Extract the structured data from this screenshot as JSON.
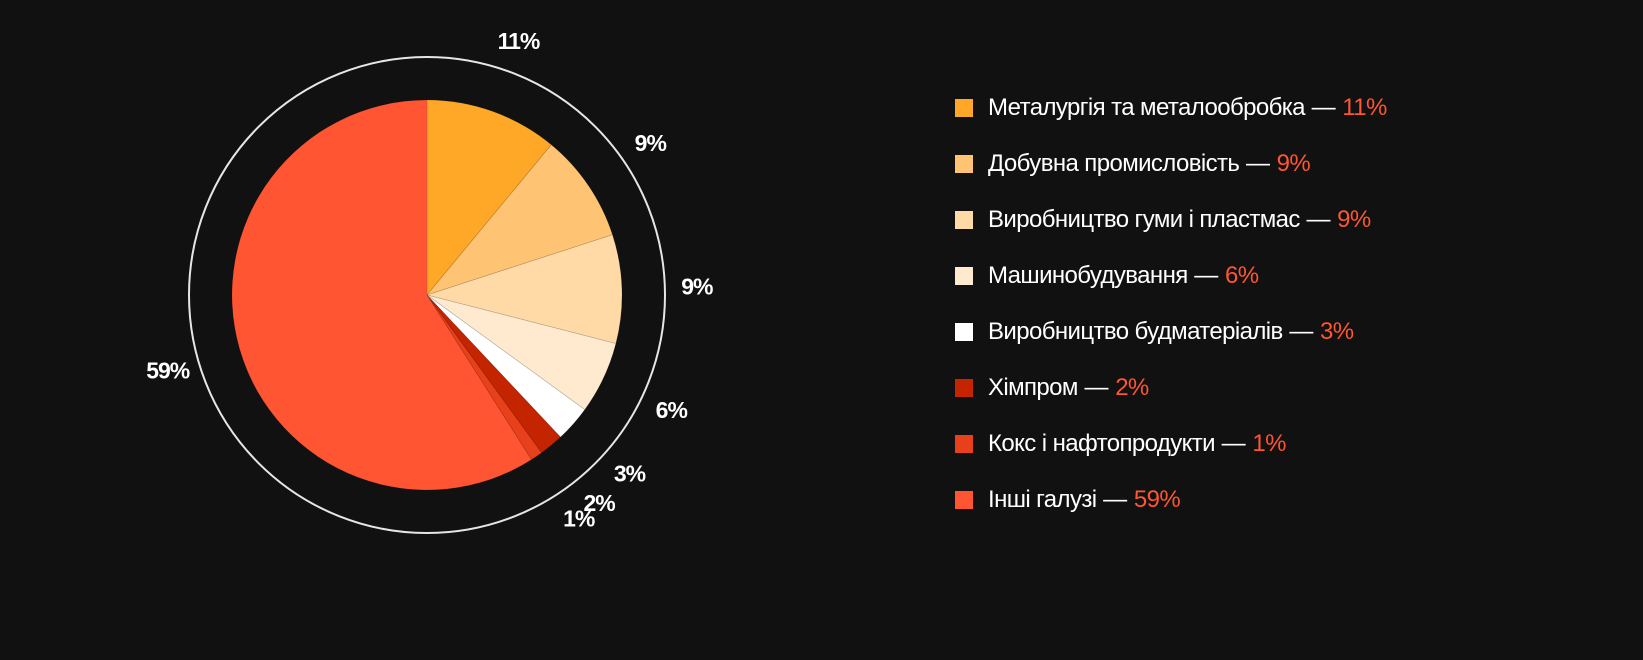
{
  "chart_data": {
    "type": "pie",
    "labels": [
      "Металургія та металообробка",
      "Добувна промисловість",
      "Виробництво гуми і пластмас",
      "Машинобудування",
      "Виробництво будматеріалів",
      "Хімпром",
      "Кокс і нафтопродукти",
      "Інші галузі"
    ],
    "values": [
      11,
      9,
      9,
      6,
      3,
      2,
      1,
      59
    ],
    "value_labels": [
      "11%",
      "9%",
      "9%",
      "6%",
      "3%",
      "2%",
      "1%",
      "59%"
    ],
    "colors": [
      "#ffa726",
      "#ffc473",
      "#ffdaa6",
      "#ffead0",
      "#ffffff",
      "#c42400",
      "#e8401a",
      "#ff5533"
    ],
    "legend_separator": "—",
    "legend_placement": "right",
    "start_angle_deg": 0,
    "direction": "clockwise"
  }
}
